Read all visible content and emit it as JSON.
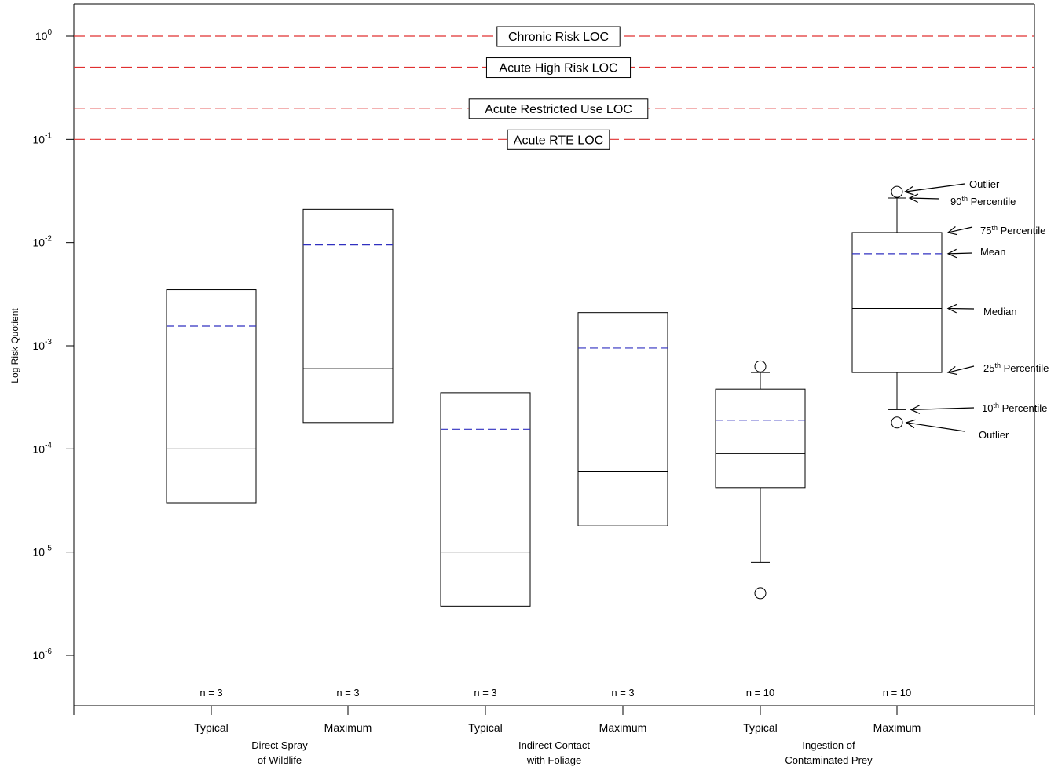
{
  "chart_data": {
    "type": "box",
    "ylabel": "Log Risk Quotient",
    "yscale": "log",
    "ylim": [
      1e-06,
      1
    ],
    "yticks": [
      {
        "value": 1,
        "base": "10",
        "exp": "0"
      },
      {
        "value": 0.1,
        "base": "10",
        "exp": "-1"
      },
      {
        "value": 0.01,
        "base": "10",
        "exp": "-2"
      },
      {
        "value": 0.001,
        "base": "10",
        "exp": "-3"
      },
      {
        "value": 0.0001,
        "base": "10",
        "exp": "-4"
      },
      {
        "value": 1e-05,
        "base": "10",
        "exp": "-5"
      },
      {
        "value": 1e-06,
        "base": "10",
        "exp": "-6"
      }
    ],
    "reference_lines": [
      {
        "label": "Chronic Risk LOC",
        "value": 1.0
      },
      {
        "label": "Acute High Risk LOC",
        "value": 0.5
      },
      {
        "label": "Acute Restricted Use LOC",
        "value": 0.2
      },
      {
        "label": "Acute RTE LOC",
        "value": 0.1
      }
    ],
    "groups": [
      {
        "line1": "Direct Spray",
        "line2": "of Wildlife"
      },
      {
        "line1": "Indirect Contact",
        "line2": "with Foliage"
      },
      {
        "line1": "Ingestion of",
        "line2": "Contaminated Prey"
      }
    ],
    "boxes": [
      {
        "group": 0,
        "category": "Typical",
        "n_label": "n = 3",
        "q1": 3e-05,
        "median": 0.0001,
        "q3": 0.0035,
        "mean": 0.00155
      },
      {
        "group": 0,
        "category": "Maximum",
        "n_label": "n = 3",
        "q1": 0.00018,
        "median": 0.0006,
        "q3": 0.021,
        "mean": 0.0095
      },
      {
        "group": 1,
        "category": "Typical",
        "n_label": "n = 3",
        "q1": 3e-06,
        "median": 1e-05,
        "q3": 0.00035,
        "mean": 0.000155
      },
      {
        "group": 1,
        "category": "Maximum",
        "n_label": "n = 3",
        "q1": 1.8e-05,
        "median": 6e-05,
        "q3": 0.0021,
        "mean": 0.00095
      },
      {
        "group": 2,
        "category": "Typical",
        "n_label": "n = 10",
        "p10": 8e-06,
        "q1": 4.2e-05,
        "median": 9e-05,
        "q3": 0.00038,
        "mean": 0.00019,
        "p90": 0.00055,
        "outliers": [
          4e-06,
          0.00063
        ]
      },
      {
        "group": 2,
        "category": "Maximum",
        "n_label": "n = 10",
        "p10": 0.00024,
        "q1": 0.00055,
        "median": 0.0023,
        "q3": 0.0125,
        "mean": 0.0078,
        "p90": 0.027,
        "outliers": [
          0.00018,
          0.031
        ]
      }
    ],
    "annotations": [
      {
        "label": "Outlier",
        "sup": "",
        "suffix": "",
        "target": "outlier_high"
      },
      {
        "label": "90",
        "sup": "th",
        "suffix": " Percentile",
        "target": "p90"
      },
      {
        "label": "75",
        "sup": "th",
        "suffix": " Percentile",
        "target": "q3"
      },
      {
        "label": "Mean",
        "sup": "",
        "suffix": "",
        "target": "mean"
      },
      {
        "label": "Median",
        "sup": "",
        "suffix": "",
        "target": "median"
      },
      {
        "label": "25",
        "sup": "th",
        "suffix": " Percentile",
        "target": "q1"
      },
      {
        "label": "10",
        "sup": "th",
        "suffix": " Percentile",
        "target": "p10"
      },
      {
        "label": "Outlier",
        "sup": "",
        "suffix": "",
        "target": "outlier_low"
      }
    ],
    "colors": {
      "axis": "#000000",
      "loc_line": "#e03030",
      "mean_line": "#3030c0",
      "box": "#000000"
    }
  }
}
